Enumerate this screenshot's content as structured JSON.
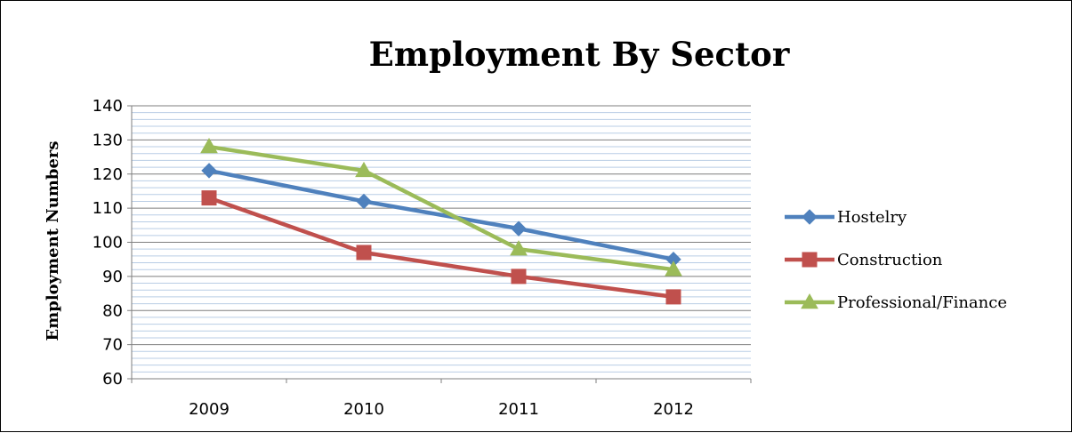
{
  "chart_data": {
    "type": "line",
    "title": "Employment By Sector",
    "xlabel": "",
    "ylabel": "Employment Numbers",
    "categories": [
      "2009",
      "2010",
      "2011",
      "2012"
    ],
    "ylim": [
      60,
      140
    ],
    "yticks": [
      "60",
      "70",
      "80",
      "90",
      "100",
      "110",
      "120",
      "130",
      "140"
    ],
    "grid": true,
    "legend_position": "right",
    "series": [
      {
        "name": "Hostelry",
        "values": [
          121,
          112,
          104,
          95
        ],
        "color": "#4F81BD",
        "marker": "diamond"
      },
      {
        "name": "Construction",
        "values": [
          113,
          97,
          90,
          84
        ],
        "color": "#C0504D",
        "marker": "square"
      },
      {
        "name": "Professional/Finance",
        "values": [
          128,
          121,
          98,
          92
        ],
        "color": "#9BBB59",
        "marker": "triangle"
      }
    ]
  }
}
